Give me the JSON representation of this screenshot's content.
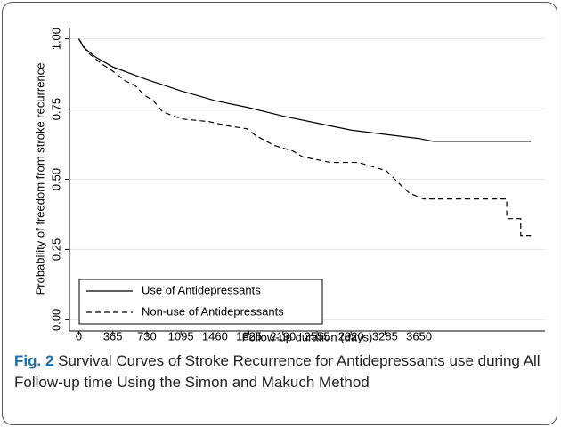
{
  "chart_data": {
    "type": "line",
    "caption_label": "Fig. 2",
    "caption": "Survival Curves of Stroke Recurrence for Antidepressants use during All Follow-up time Using the Simon and Makuch Method",
    "xlabel": "Follow-up duration (days)",
    "ylabel": "Probability of freedom from stroke recurrence",
    "xlim": [
      -100,
      5000
    ],
    "ylim": [
      -0.04,
      1.04
    ],
    "xticks": [
      0,
      365,
      730,
      1095,
      1460,
      1825,
      2190,
      2555,
      2920,
      3285,
      3650
    ],
    "yticks": [
      {
        "value": 0,
        "label": "0.00"
      },
      0.25,
      {
        "value": 0.5,
        "label": "0.50"
      },
      0.75,
      {
        "value": 1,
        "label": "1.00"
      }
    ],
    "grid": true,
    "legend": "lower left",
    "series": [
      {
        "name": "Use of Antidepressants",
        "color": "#000000",
        "dash": "solid",
        "x": [
          0,
          50,
          180,
          365,
          730,
          1095,
          1460,
          1825,
          2190,
          2555,
          2920,
          3285,
          3650,
          3800,
          4850
        ],
        "values": [
          1.0,
          0.97,
          0.935,
          0.9,
          0.855,
          0.815,
          0.78,
          0.755,
          0.725,
          0.7,
          0.675,
          0.66,
          0.645,
          0.635,
          0.635
        ]
      },
      {
        "name": "Non-use of Antidepressants",
        "color": "#000000",
        "dash": "dashed",
        "x": [
          0,
          100,
          250,
          365,
          500,
          600,
          700,
          800,
          900,
          1100,
          1400,
          1600,
          1800,
          1900,
          2100,
          2300,
          2400,
          2700,
          3000,
          3300,
          3450,
          3550,
          3700,
          4590,
          4590,
          4740,
          4740,
          4850
        ],
        "values": [
          1.0,
          0.95,
          0.91,
          0.885,
          0.85,
          0.835,
          0.8,
          0.78,
          0.74,
          0.715,
          0.705,
          0.69,
          0.68,
          0.655,
          0.62,
          0.6,
          0.58,
          0.56,
          0.56,
          0.53,
          0.48,
          0.45,
          0.43,
          0.43,
          0.36,
          0.36,
          0.3,
          0.3
        ]
      }
    ]
  }
}
